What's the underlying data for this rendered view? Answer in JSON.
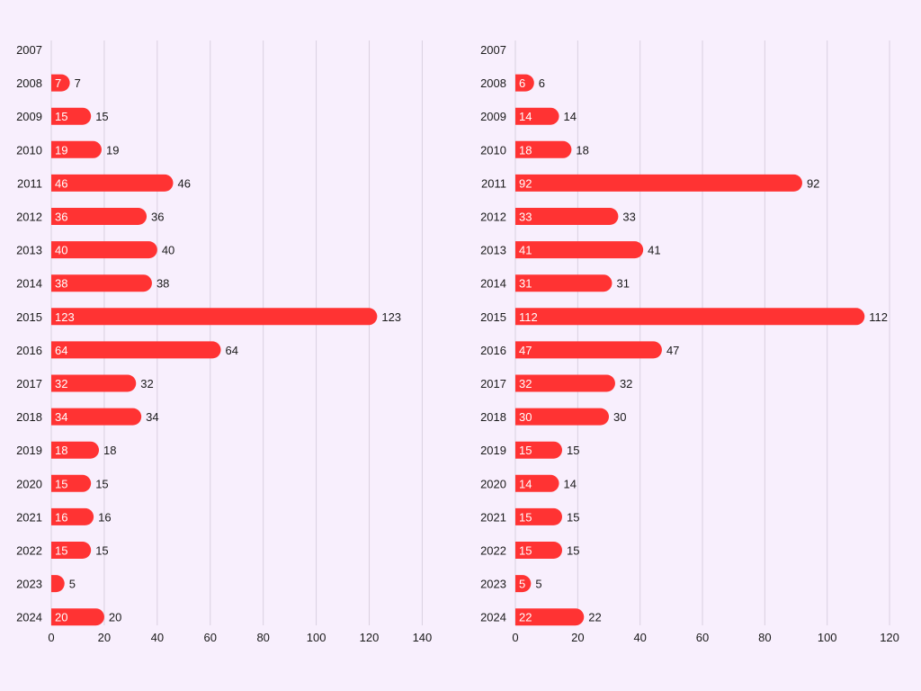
{
  "colors": {
    "background": "#f8effd",
    "bar": "#ff3333",
    "grid": "#d9d0e0",
    "text": "#1a1a1a",
    "inner_label": "#ffffff"
  },
  "chart_data": [
    {
      "type": "bar",
      "orientation": "horizontal",
      "title": "",
      "xlabel": "",
      "ylabel": "",
      "xlim": [
        0,
        140
      ],
      "xticks": [
        0,
        20,
        40,
        60,
        80,
        100,
        120,
        140
      ],
      "grid": true,
      "categories": [
        "2007",
        "2008",
        "2009",
        "2010",
        "2011",
        "2012",
        "2013",
        "2014",
        "2015",
        "2016",
        "2017",
        "2018",
        "2019",
        "2020",
        "2021",
        "2022",
        "2023",
        "2024"
      ],
      "values": [
        0,
        7,
        15,
        19,
        46,
        36,
        40,
        38,
        123,
        64,
        32,
        34,
        18,
        15,
        16,
        15,
        5,
        20
      ]
    },
    {
      "type": "bar",
      "orientation": "horizontal",
      "title": "",
      "xlabel": "",
      "ylabel": "",
      "xlim": [
        0,
        120
      ],
      "xticks": [
        0,
        20,
        40,
        60,
        80,
        100,
        120
      ],
      "grid": true,
      "categories": [
        "2007",
        "2008",
        "2009",
        "2010",
        "2011",
        "2012",
        "2013",
        "2014",
        "2015",
        "2016",
        "2017",
        "2018",
        "2019",
        "2020",
        "2021",
        "2022",
        "2023",
        "2024"
      ],
      "values": [
        0,
        6,
        14,
        18,
        92,
        33,
        41,
        31,
        112,
        47,
        32,
        30,
        15,
        14,
        15,
        15,
        5,
        22
      ]
    }
  ]
}
